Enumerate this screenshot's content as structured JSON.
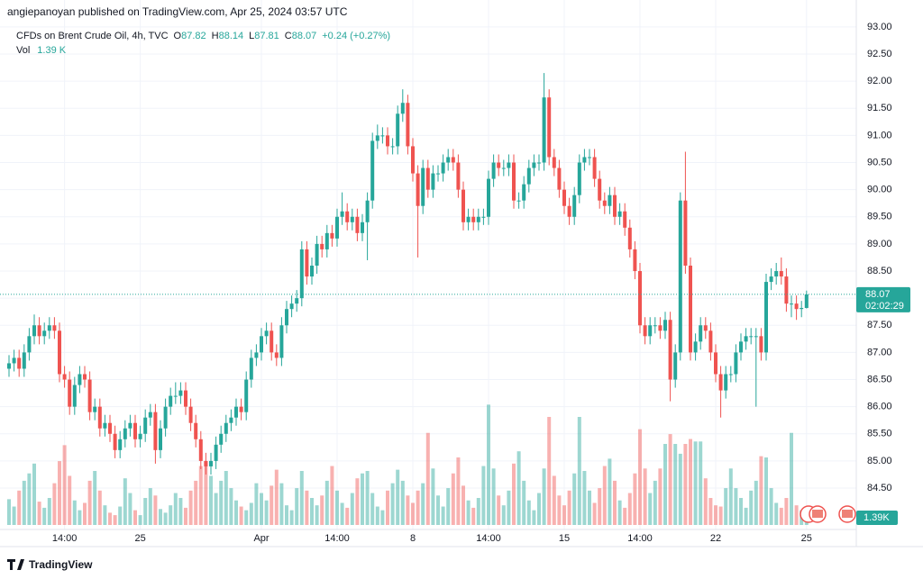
{
  "header": {
    "published": "angiepanoyan published on TradingView.com, Apr 25, 2024 03:57 UTC",
    "footer": "TradingView"
  },
  "legend": {
    "symbol": "CFDs on Brent Crude Oil, 4h, TVC",
    "open_label": "O",
    "open": "87.82",
    "high_label": "H",
    "high": "88.14",
    "low_label": "L",
    "low": "87.81",
    "close_label": "C",
    "close": "88.07",
    "change": "+0.24 (+0.27%)",
    "volume_label": "Vol",
    "volume": "1.39 K"
  },
  "chart_data": {
    "type": "candlestick",
    "up_color": "#26a69a",
    "down_color": "#ef5350",
    "grid": true,
    "price_tag": "88.07",
    "countdown": "02:02:29",
    "volume_tag": "1.39K",
    "ylim": [
      83.82,
      93.33
    ],
    "yticks": [
      {
        "value": 84.5,
        "label": "84.50"
      },
      {
        "value": 85,
        "label": "85.00"
      },
      {
        "value": 85.5,
        "label": "85.50"
      },
      {
        "value": 86,
        "label": "86.00"
      },
      {
        "value": 86.5,
        "label": "86.50"
      },
      {
        "value": 87,
        "label": "87.00"
      },
      {
        "value": 87.5,
        "label": "87.50"
      },
      {
        "value": 88,
        "label": "88.00"
      },
      {
        "value": 88.5,
        "label": "88.50"
      },
      {
        "value": 89,
        "label": "89.00"
      },
      {
        "value": 89.5,
        "label": "89.50"
      },
      {
        "value": 90,
        "label": "90.00"
      },
      {
        "value": 90.5,
        "label": "90.50"
      },
      {
        "value": 91,
        "label": "91.00"
      },
      {
        "value": 91.5,
        "label": "91.50"
      },
      {
        "value": 92,
        "label": "92.00"
      },
      {
        "value": 92.5,
        "label": "92.50"
      },
      {
        "value": 93,
        "label": "93.00"
      }
    ],
    "volume_lim": [
      0,
      11
    ],
    "categories": [
      null,
      null,
      null,
      null,
      null,
      null,
      null,
      null,
      null,
      null,
      null,
      "14:00",
      null,
      null,
      null,
      null,
      null,
      null,
      null,
      null,
      null,
      null,
      null,
      null,
      null,
      null,
      "25",
      null,
      null,
      null,
      null,
      null,
      null,
      null,
      null,
      null,
      null,
      null,
      null,
      null,
      null,
      null,
      null,
      null,
      null,
      null,
      null,
      null,
      null,
      null,
      "Apr",
      null,
      null,
      null,
      null,
      null,
      null,
      null,
      null,
      null,
      null,
      null,
      null,
      null,
      null,
      "14:00",
      null,
      null,
      null,
      null,
      null,
      null,
      null,
      null,
      null,
      null,
      null,
      null,
      null,
      null,
      "8",
      null,
      null,
      null,
      null,
      null,
      null,
      null,
      null,
      null,
      null,
      null,
      null,
      null,
      null,
      "14:00",
      null,
      null,
      null,
      null,
      null,
      null,
      null,
      null,
      null,
      null,
      null,
      null,
      null,
      null,
      "15",
      null,
      null,
      null,
      null,
      null,
      null,
      null,
      null,
      null,
      null,
      null,
      null,
      null,
      null,
      "14:00",
      null,
      null,
      null,
      null,
      null,
      null,
      null,
      null,
      null,
      null,
      null,
      null,
      null,
      null,
      "22",
      null,
      null,
      null,
      null,
      null,
      null,
      null,
      null,
      null,
      null,
      null,
      null,
      null,
      null,
      null,
      null,
      null,
      "25"
    ],
    "open": [
      86.7,
      86.8,
      86.9,
      86.7,
      87.0,
      87.3,
      87.5,
      87.3,
      87.4,
      87.5,
      87.4,
      86.6,
      86.5,
      86.0,
      86.4,
      86.6,
      86.5,
      85.9,
      86.0,
      85.6,
      85.7,
      85.5,
      85.2,
      85.4,
      85.6,
      85.7,
      85.4,
      85.5,
      85.8,
      85.9,
      85.2,
      85.6,
      86.0,
      86.2,
      86.2,
      86.3,
      86.0,
      85.7,
      85.4,
      85.0,
      84.9,
      85.0,
      85.3,
      85.5,
      85.7,
      85.8,
      86.0,
      85.9,
      86.5,
      86.9,
      87.0,
      87.3,
      87.4,
      87.0,
      86.9,
      87.5,
      87.8,
      87.9,
      88.0,
      88.9,
      88.4,
      88.6,
      89.0,
      88.9,
      89.2,
      89.1,
      89.5,
      89.6,
      89.4,
      89.5,
      89.2,
      89.4,
      89.8,
      90.9,
      91.0,
      91.0,
      90.8,
      90.8,
      91.4,
      91.6,
      90.8,
      90.3,
      89.7,
      90.4,
      90.0,
      90.3,
      90.3,
      90.5,
      90.6,
      90.5,
      90.0,
      89.4,
      89.5,
      89.4,
      89.5,
      89.5,
      90.2,
      90.5,
      90.4,
      90.4,
      90.5,
      89.8,
      89.8,
      90.1,
      90.4,
      90.5,
      90.5,
      91.7,
      90.6,
      90.4,
      90.0,
      89.7,
      89.5,
      89.9,
      90.5,
      90.6,
      90.6,
      90.2,
      89.8,
      89.7,
      89.9,
      89.5,
      89.6,
      89.3,
      88.9,
      88.5,
      87.5,
      87.3,
      87.5,
      87.5,
      87.4,
      87.6,
      86.5,
      87.0,
      89.8,
      88.6,
      87.0,
      87.2,
      87.5,
      87.4,
      87.0,
      86.6,
      86.3,
      86.6,
      86.6,
      87.0,
      87.2,
      87.3,
      87.3,
      87.3,
      87.0,
      88.3,
      88.4,
      88.5,
      88.4,
      87.9,
      87.9,
      87.8,
      87.82
    ],
    "high": [
      86.95,
      87.05,
      87.05,
      87.15,
      87.45,
      87.7,
      87.65,
      87.55,
      87.65,
      87.65,
      87.55,
      86.75,
      86.65,
      86.55,
      86.75,
      86.75,
      86.65,
      86.15,
      86.15,
      85.85,
      85.85,
      85.65,
      85.55,
      85.75,
      85.85,
      85.85,
      85.65,
      85.95,
      86.05,
      86.05,
      85.75,
      86.15,
      86.35,
      86.45,
      86.45,
      86.45,
      86.15,
      85.85,
      85.55,
      85.15,
      85.15,
      85.45,
      85.65,
      85.85,
      85.95,
      86.15,
      86.15,
      86.65,
      87.05,
      87.15,
      87.45,
      87.55,
      87.55,
      87.15,
      87.65,
      87.95,
      88.05,
      88.15,
      89.05,
      89.05,
      88.75,
      89.15,
      89.15,
      89.35,
      89.35,
      89.65,
      89.95,
      89.75,
      89.65,
      89.65,
      89.55,
      89.95,
      91.05,
      91.2,
      91.15,
      91.15,
      90.95,
      91.55,
      91.85,
      91.75,
      90.95,
      90.45,
      90.55,
      90.55,
      90.45,
      90.45,
      90.65,
      90.75,
      90.75,
      90.65,
      90.15,
      89.65,
      89.65,
      89.65,
      89.65,
      90.35,
      90.65,
      90.65,
      90.55,
      90.65,
      90.65,
      89.95,
      90.25,
      90.55,
      90.65,
      90.65,
      92.15,
      91.85,
      90.75,
      90.55,
      90.15,
      89.85,
      90.05,
      90.65,
      90.75,
      90.75,
      90.75,
      90.35,
      89.95,
      90.05,
      90.05,
      89.75,
      89.75,
      89.45,
      89.05,
      88.65,
      87.65,
      87.65,
      87.65,
      87.65,
      87.75,
      87.75,
      87.15,
      89.95,
      90.7,
      88.75,
      87.35,
      87.65,
      87.65,
      87.55,
      87.15,
      86.75,
      86.75,
      86.75,
      87.15,
      87.35,
      87.45,
      87.45,
      87.45,
      87.45,
      88.45,
      88.55,
      88.65,
      88.75,
      88.55,
      88.05,
      88.05,
      87.95,
      88.14
    ],
    "low": [
      86.55,
      86.65,
      86.55,
      86.55,
      86.85,
      87.15,
      87.15,
      87.15,
      87.25,
      87.25,
      86.45,
      86.35,
      85.85,
      85.85,
      86.25,
      86.35,
      85.75,
      85.75,
      85.45,
      85.45,
      85.35,
      85.05,
      85.05,
      85.25,
      85.45,
      85.25,
      85.25,
      85.35,
      85.65,
      84.95,
      85.05,
      85.45,
      85.85,
      86.05,
      86.05,
      85.85,
      85.55,
      85.25,
      84.85,
      84.75,
      84.75,
      84.85,
      85.15,
      85.35,
      85.55,
      85.65,
      85.75,
      85.75,
      86.35,
      86.75,
      86.85,
      87.15,
      86.85,
      86.75,
      86.75,
      87.35,
      87.65,
      87.75,
      87.85,
      88.25,
      88.25,
      88.45,
      88.75,
      88.75,
      88.95,
      88.95,
      89.35,
      89.25,
      89.25,
      89.05,
      89.05,
      88.7,
      89.65,
      90.75,
      90.85,
      90.65,
      90.65,
      90.65,
      91.25,
      90.65,
      90.15,
      88.75,
      89.55,
      89.85,
      89.85,
      90.15,
      90.15,
      90.35,
      90.35,
      89.85,
      89.25,
      89.25,
      89.25,
      89.25,
      89.35,
      89.35,
      90.05,
      90.25,
      90.25,
      90.25,
      89.65,
      89.65,
      89.65,
      89.95,
      90.25,
      90.35,
      90.35,
      90.45,
      90.25,
      89.85,
      89.55,
      89.35,
      89.35,
      89.75,
      90.35,
      90.45,
      90.05,
      89.65,
      89.55,
      89.55,
      89.35,
      89.35,
      89.15,
      88.75,
      88.35,
      87.35,
      87.15,
      87.15,
      87.35,
      87.25,
      87.25,
      86.1,
      86.35,
      86.85,
      88.45,
      86.85,
      86.85,
      87.05,
      87.25,
      86.85,
      86.45,
      85.8,
      86.15,
      86.45,
      86.45,
      86.85,
      87.05,
      87.15,
      86.0,
      86.85,
      86.85,
      88.15,
      88.25,
      88.25,
      87.75,
      87.65,
      87.6,
      87.65,
      87.81
    ],
    "close": [
      86.8,
      86.9,
      86.7,
      87.0,
      87.3,
      87.5,
      87.3,
      87.4,
      87.5,
      87.4,
      86.6,
      86.5,
      86.0,
      86.4,
      86.6,
      86.5,
      85.9,
      86.0,
      85.6,
      85.7,
      85.5,
      85.2,
      85.4,
      85.6,
      85.7,
      85.4,
      85.5,
      85.8,
      85.9,
      85.2,
      85.6,
      86.0,
      86.2,
      86.2,
      86.3,
      86.0,
      85.7,
      85.4,
      85.0,
      84.9,
      85.0,
      85.3,
      85.5,
      85.7,
      85.8,
      86.0,
      85.9,
      86.5,
      86.9,
      87.0,
      87.3,
      87.4,
      87.0,
      86.9,
      87.5,
      87.8,
      87.9,
      88.0,
      88.9,
      88.4,
      88.6,
      89.0,
      88.9,
      89.2,
      89.1,
      89.5,
      89.6,
      89.4,
      89.5,
      89.2,
      89.4,
      89.8,
      90.9,
      91.0,
      91.0,
      90.8,
      90.8,
      91.4,
      91.6,
      90.8,
      90.3,
      89.7,
      90.4,
      90.0,
      90.3,
      90.3,
      90.5,
      90.6,
      90.5,
      90.0,
      89.4,
      89.5,
      89.4,
      89.5,
      89.5,
      90.2,
      90.5,
      90.4,
      90.4,
      90.5,
      89.8,
      89.8,
      90.1,
      90.4,
      90.5,
      90.5,
      91.7,
      90.6,
      90.4,
      90.0,
      89.7,
      89.5,
      89.9,
      90.5,
      90.6,
      90.6,
      90.2,
      89.8,
      89.7,
      89.9,
      89.5,
      89.6,
      89.3,
      88.9,
      88.5,
      87.5,
      87.3,
      87.5,
      87.5,
      87.4,
      87.6,
      86.5,
      87.0,
      89.8,
      88.6,
      87.0,
      87.2,
      87.5,
      87.4,
      87.0,
      86.6,
      86.3,
      86.6,
      86.6,
      87.0,
      87.2,
      87.3,
      87.3,
      87.3,
      87.0,
      88.3,
      88.4,
      88.5,
      88.4,
      87.9,
      87.9,
      87.8,
      87.82,
      88.07
    ],
    "volume": [
      2.1,
      1.5,
      2.8,
      3.6,
      4.2,
      5.0,
      1.9,
      1.4,
      2.2,
      3.4,
      5.2,
      6.5,
      4.0,
      2.0,
      1.2,
      1.8,
      3.6,
      4.4,
      2.8,
      1.6,
      1.0,
      0.8,
      1.5,
      3.8,
      2.6,
      1.2,
      0.8,
      2.2,
      3.0,
      2.4,
      1.3,
      1.0,
      1.6,
      2.6,
      2.2,
      1.4,
      2.8,
      3.6,
      4.8,
      5.2,
      4.0,
      2.6,
      3.6,
      4.4,
      3.0,
      2.0,
      1.5,
      1.2,
      1.8,
      3.4,
      2.6,
      2.0,
      3.2,
      4.5,
      3.4,
      1.6,
      1.2,
      3.0,
      4.4,
      2.8,
      2.2,
      1.6,
      2.4,
      3.6,
      4.8,
      2.8,
      1.8,
      1.4,
      2.6,
      3.8,
      4.2,
      4.4,
      2.6,
      1.5,
      1.2,
      2.8,
      3.4,
      4.5,
      3.6,
      2.4,
      1.8,
      2.8,
      3.4,
      7.5,
      4.6,
      2.4,
      1.5,
      3.0,
      4.2,
      5.5,
      3.2,
      2.0,
      1.4,
      2.2,
      4.8,
      9.8,
      4.6,
      2.4,
      1.6,
      2.8,
      5.0,
      6.0,
      3.6,
      2.0,
      1.2,
      2.6,
      4.6,
      8.8,
      4.0,
      2.4,
      1.6,
      2.8,
      4.2,
      8.8,
      4.4,
      2.8,
      1.8,
      3.0,
      4.8,
      5.4,
      3.6,
      2.0,
      1.4,
      2.6,
      4.2,
      7.8,
      4.6,
      2.6,
      3.6,
      4.6,
      6.6,
      7.4,
      6.6,
      5.8,
      6.6,
      7.0,
      6.8,
      6.8,
      3.8,
      2.2,
      1.6,
      1.5,
      3.0,
      4.6,
      3.0,
      2.2,
      1.4,
      2.8,
      3.6,
      5.6,
      5.5,
      3.0,
      1.8,
      1.4,
      2.2,
      7.5,
      1.6,
      1.2,
      1.39
    ]
  }
}
